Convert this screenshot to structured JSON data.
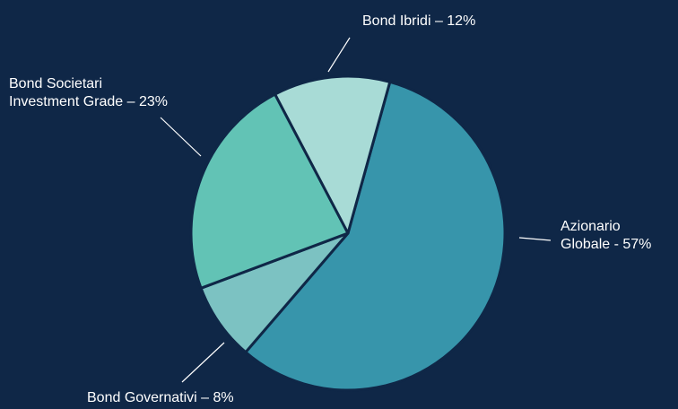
{
  "chart_data": {
    "type": "pie",
    "title": "",
    "colors": {
      "background": "#0f2747",
      "border": "#0f2747",
      "leader": "#ffffff",
      "label_text": "#ffffff"
    },
    "slices": [
      {
        "name": "Azionario Globale",
        "value": 57,
        "color": "#3795ab",
        "label_lines": [
          "Azionario",
          "Globale - 57%"
        ]
      },
      {
        "name": "Bond Governativi",
        "value": 8,
        "color": "#7cc2c2",
        "label_lines": [
          "Bond Governativi – 8%"
        ]
      },
      {
        "name": "Bond Societari Investment Grade",
        "value": 23,
        "color": "#62c3b5",
        "label_lines": [
          "Bond Societari",
          "Investment Grade – 23%"
        ]
      },
      {
        "name": "Bond Ibridi",
        "value": 12,
        "color": "#a8dbd6",
        "label_lines": [
          "Bond Ibridi – 12%"
        ]
      }
    ]
  }
}
